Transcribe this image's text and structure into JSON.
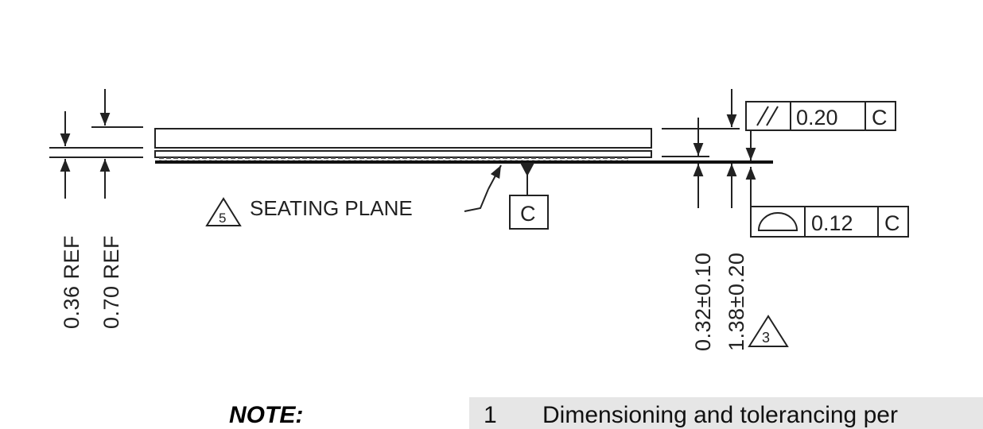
{
  "drawing": {
    "labels": {
      "dim_036": "0.36  REF",
      "dim_070": "0.70  REF",
      "dim_032": "0.32±0.10",
      "dim_138": "1.38±0.20",
      "seating_plane": "SEATING  PLANE",
      "datum_c": "C",
      "note_flag_5": "5",
      "note_flag_3": "3"
    },
    "fcf_parallelism": {
      "symbol": "//",
      "tolerance": "0.20",
      "datum": "C"
    },
    "fcf_profile": {
      "symbol": "profile-of-surface",
      "tolerance": "0.12",
      "datum": "C"
    }
  },
  "note": {
    "heading": "NOTE:",
    "item_number": "1",
    "item_text": "Dimensioning and tolerancing per"
  }
}
